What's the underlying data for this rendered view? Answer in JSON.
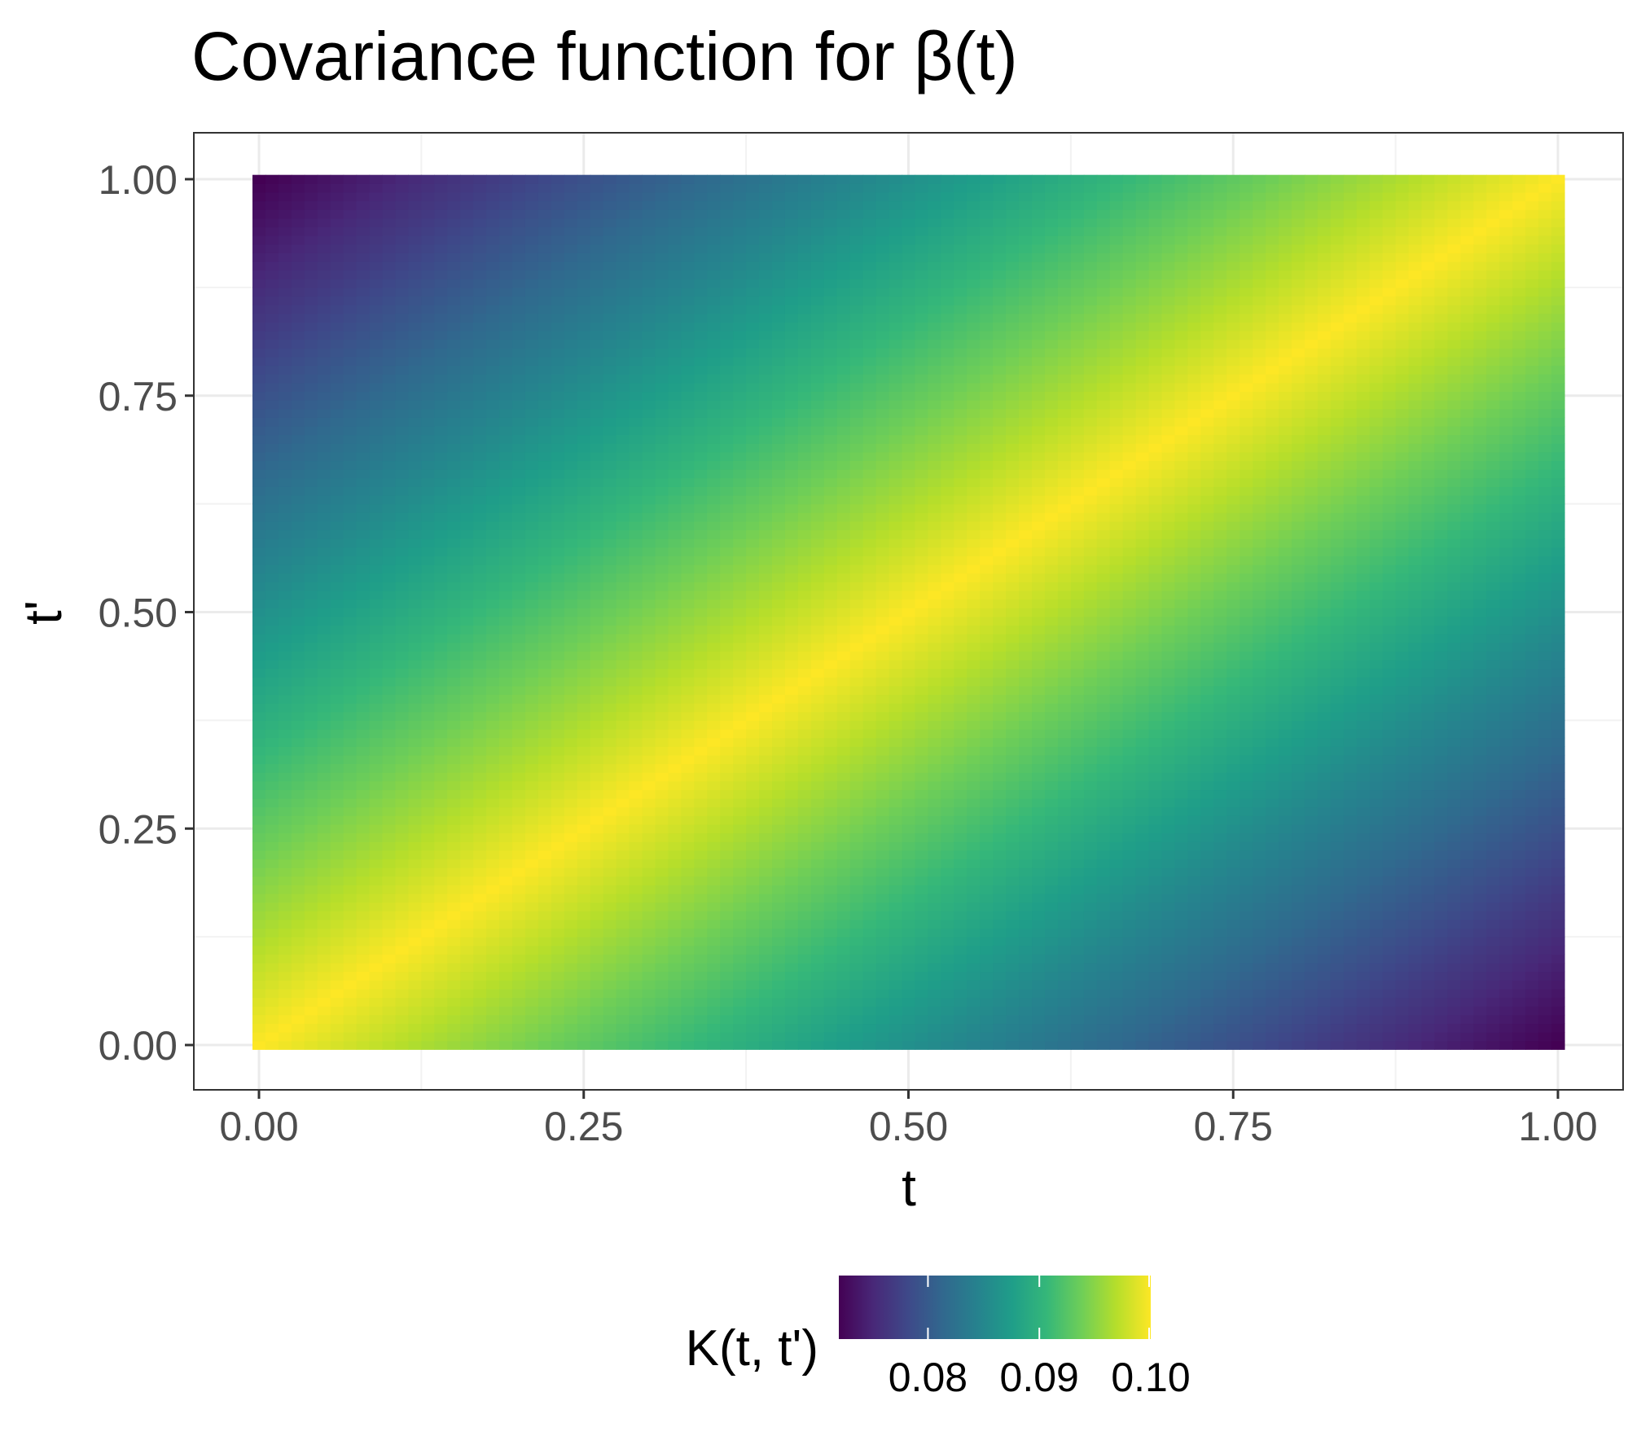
{
  "chart_data": {
    "type": "heatmap",
    "title": "Covariance function for β(t)",
    "xlabel": "t",
    "ylabel": "t'",
    "xlim": [
      0,
      1
    ],
    "ylim": [
      0,
      1
    ],
    "x_ticks": [
      "0.00",
      "0.25",
      "0.50",
      "0.75",
      "1.00"
    ],
    "y_ticks": [
      "0.00",
      "0.25",
      "0.50",
      "0.75",
      "1.00"
    ],
    "x_tick_values": [
      0,
      0.25,
      0.5,
      0.75,
      1
    ],
    "y_tick_values": [
      0,
      0.25,
      0.5,
      0.75,
      1
    ],
    "grid": true,
    "colormap": "viridis",
    "colormap_stops": [
      "#440154",
      "#482878",
      "#3e4989",
      "#31688e",
      "#26828e",
      "#1f9e89",
      "#35b779",
      "#6ece58",
      "#b5de2b",
      "#fde725"
    ],
    "fill": {
      "function": "K(t, t') = 0.10 - 0.028 * |t - t'|",
      "resolution": 101,
      "min": 0.072,
      "max": 0.1
    },
    "legend": {
      "title": "K(t, t')",
      "position": "bottom",
      "ticks": [
        "0.08",
        "0.09",
        "0.10"
      ],
      "tick_values": [
        0.08,
        0.09,
        0.1
      ],
      "range": [
        0.072,
        0.1
      ]
    }
  }
}
